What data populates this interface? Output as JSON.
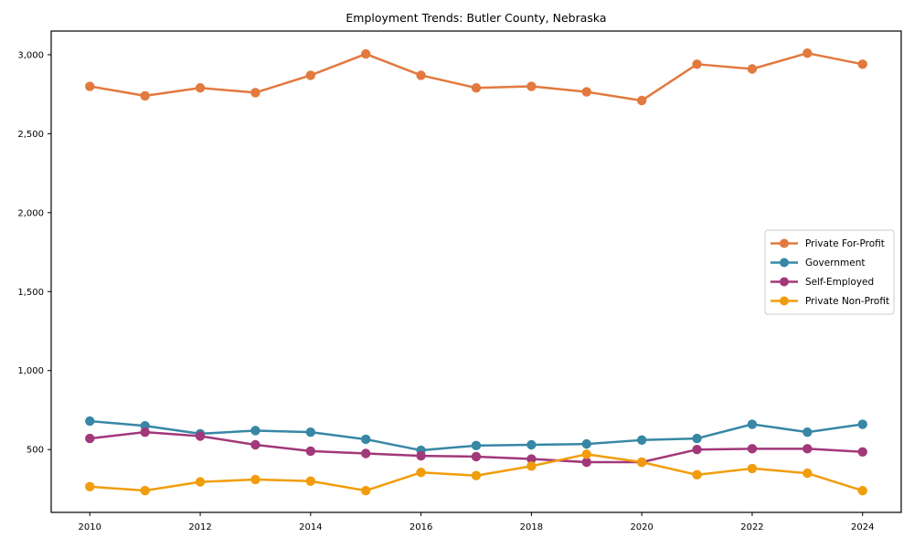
{
  "chart_data": {
    "type": "line",
    "title": "Employment Trends: Butler County, Nebraska",
    "xlabel": "",
    "ylabel": "",
    "x": [
      2010,
      2011,
      2012,
      2013,
      2014,
      2015,
      2016,
      2017,
      2018,
      2019,
      2020,
      2021,
      2022,
      2023,
      2024
    ],
    "series": [
      {
        "name": "Private For-Profit",
        "color": "#e2793e",
        "values": [
          2800,
          2740,
          2790,
          2760,
          2870,
          3005,
          2870,
          2790,
          2800,
          2765,
          2710,
          2940,
          2910,
          3010,
          2940
        ]
      },
      {
        "name": "Government",
        "color": "#3787a5",
        "values": [
          680,
          650,
          600,
          620,
          610,
          565,
          495,
          525,
          530,
          535,
          560,
          570,
          660,
          610,
          660
        ]
      },
      {
        "name": "Self-Employed",
        "color": "#a1387a",
        "values": [
          570,
          610,
          585,
          530,
          490,
          475,
          460,
          455,
          440,
          420,
          420,
          500,
          505,
          505,
          485
        ]
      },
      {
        "name": "Private Non-Profit",
        "color": "#f19d0b",
        "values": [
          265,
          240,
          295,
          310,
          300,
          240,
          355,
          335,
          395,
          470,
          420,
          340,
          380,
          350,
          240
        ]
      }
    ],
    "x_ticks": [
      2010,
      2012,
      2014,
      2016,
      2018,
      2020,
      2022,
      2024
    ],
    "y_ticks": [
      500,
      1000,
      1500,
      2000,
      2500,
      3000
    ],
    "xlim": [
      2009.3,
      2024.7
    ],
    "ylim": [
      102,
      3150
    ],
    "grid": false,
    "legend_position": "center right",
    "frame_color": "#000000",
    "legend_border_color": "#cccccc",
    "background_color": "#ffffff"
  }
}
